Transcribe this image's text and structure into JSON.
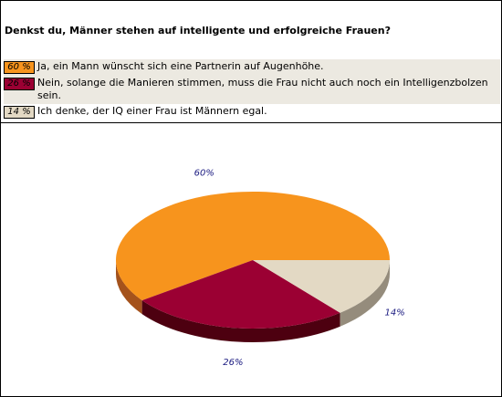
{
  "poll": {
    "question": "Denkst du, Männer stehen auf intelligente und erfolgreiche Frauen?",
    "answers": [
      {
        "pct_label": "60 %",
        "text": "Ja, ein Mann wünscht sich eine Partnerin auf Augenhöhe.",
        "color": "#f7941d"
      },
      {
        "pct_label": "26 %",
        "text": "Nein, solange die Manieren stimmen, muss die Frau nicht auch noch ein Intelligenzbolzen sein.",
        "color": "#9b0033"
      },
      {
        "pct_label": "14 %",
        "text": "Ich denke, der IQ einer Frau ist Männern egal.",
        "color": "#e3d9c4"
      }
    ]
  },
  "chart_data": {
    "type": "pie",
    "title": "",
    "slices": [
      {
        "label": "60%",
        "value": 60,
        "color": "#f7941d",
        "side_color": "#a4521c"
      },
      {
        "label": "26%",
        "value": 26,
        "color": "#9b0033",
        "side_color": "#4d0010"
      },
      {
        "label": "14%",
        "value": 14,
        "color": "#e3d9c4",
        "side_color": "#958c7c"
      }
    ],
    "style": "3d"
  }
}
